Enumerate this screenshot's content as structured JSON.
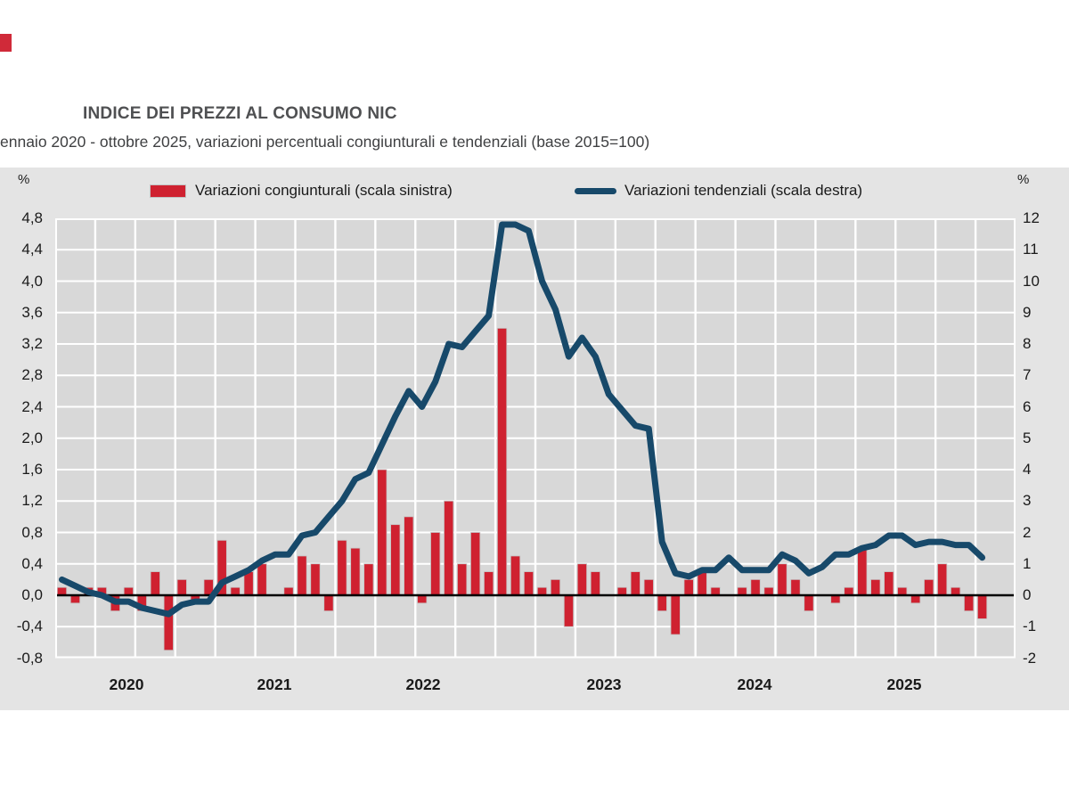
{
  "header": {
    "title": "INDICE DEI PREZZI AL CONSUMO NIC",
    "subtitle": "ennaio 2020 - ottobre 2025, variazioni percentuali congiunturali e tendenziali (base 2015=100)"
  },
  "colors": {
    "bar_red": "#cf2130",
    "line_blue": "#17496a",
    "panel_grey": "#e4e4e4",
    "plot_grey": "#d8d8d8",
    "grid_white": "#ffffff",
    "zero_black": "#000000",
    "logo_red": "#d02a39"
  },
  "chart_data": {
    "type": "bar",
    "subtype": "bar+line dual axis",
    "x_start": "2020-01",
    "x_end": "2025-10",
    "x_slots": 72,
    "x_tick_labels": [
      "2020",
      "2021",
      "2022",
      "2023",
      "2024",
      "2025"
    ],
    "left_axis": {
      "unit": "%",
      "min": -0.8,
      "max": 4.8,
      "step": 0.4,
      "tick_labels": [
        "4,8",
        "4,4",
        "4,0",
        "3,6",
        "3,2",
        "2,8",
        "2,4",
        "2,0",
        "1,6",
        "1,2",
        "0,8",
        "0,4",
        "0,0",
        "-0,4",
        "-0,8"
      ]
    },
    "right_axis": {
      "unit": "%",
      "min": -2,
      "max": 12,
      "step": 1,
      "tick_labels": [
        "12",
        "11",
        "10",
        "9",
        "8",
        "7",
        "6",
        "5",
        "4",
        "3",
        "2",
        "1",
        "0",
        "-1",
        "-2"
      ]
    },
    "grid": {
      "horizontal_step_left": 0.4,
      "vertical_step_months": 3,
      "zero_line": true
    },
    "series": [
      {
        "name": "Variazioni congiunturali (scala sinistra)",
        "type": "bar",
        "axis": "left",
        "color": "#cf2130",
        "values": [
          0.1,
          -0.1,
          0.1,
          0.1,
          -0.2,
          0.1,
          -0.2,
          0.3,
          -0.7,
          0.2,
          -0.1,
          0.2,
          0.7,
          0.1,
          0.3,
          0.4,
          0.0,
          0.1,
          0.5,
          0.4,
          -0.2,
          0.7,
          0.6,
          0.4,
          1.6,
          0.9,
          1.0,
          -0.1,
          0.8,
          1.2,
          0.4,
          0.8,
          0.3,
          3.4,
          0.5,
          0.3,
          0.1,
          0.2,
          -0.4,
          0.4,
          0.3,
          0.0,
          0.1,
          0.3,
          0.2,
          -0.2,
          -0.5,
          0.2,
          0.3,
          0.1,
          0.0,
          0.1,
          0.2,
          0.1,
          0.4,
          0.2,
          -0.2,
          0.0,
          -0.1,
          0.1,
          0.6,
          0.2,
          0.3,
          0.1,
          -0.1,
          0.2,
          0.4,
          0.1,
          -0.2,
          -0.3
        ]
      },
      {
        "name": "Variazioni tendenziali (scala destra)",
        "type": "line",
        "axis": "right",
        "color": "#17496a",
        "values": [
          0.5,
          0.3,
          0.1,
          0.0,
          -0.2,
          -0.2,
          -0.4,
          -0.5,
          -0.6,
          -0.3,
          -0.2,
          -0.2,
          0.4,
          0.6,
          0.8,
          1.1,
          1.3,
          1.3,
          1.9,
          2.0,
          2.5,
          3.0,
          3.7,
          3.9,
          4.8,
          5.7,
          6.5,
          6.0,
          6.8,
          8.0,
          7.9,
          8.4,
          8.9,
          11.8,
          11.8,
          11.6,
          10.0,
          9.1,
          7.6,
          8.2,
          7.6,
          6.4,
          5.9,
          5.4,
          5.3,
          1.7,
          0.7,
          0.6,
          0.8,
          0.8,
          1.2,
          0.8,
          0.8,
          0.8,
          1.3,
          1.1,
          0.7,
          0.9,
          1.3,
          1.3,
          1.5,
          1.6,
          1.9,
          1.9,
          1.6,
          1.7,
          1.7,
          1.6,
          1.6,
          1.2
        ]
      }
    ]
  }
}
